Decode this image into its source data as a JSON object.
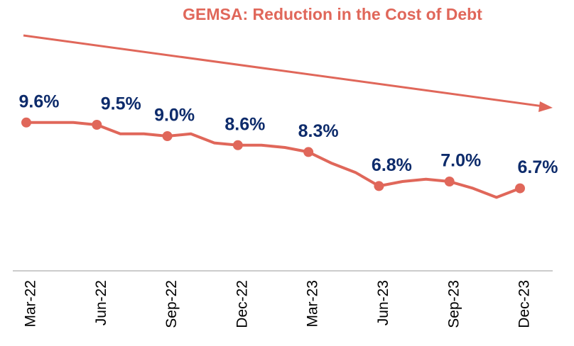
{
  "chart_data": {
    "type": "line",
    "title": "GEMSA: Reduction in the Cost of Debt",
    "categories": [
      "Mar-22",
      null,
      null,
      "Jun-22",
      null,
      null,
      "Sep-22",
      null,
      null,
      "Dec-22",
      null,
      null,
      "Mar-23",
      null,
      null,
      "Jun-23",
      null,
      null,
      "Sep-23",
      null,
      null,
      "Dec-23"
    ],
    "series": [
      {
        "color": "#e0675a",
        "values": [
          9.6,
          9.6,
          9.6,
          9.5,
          9.1,
          9.1,
          9.0,
          9.1,
          8.7,
          8.6,
          8.6,
          8.5,
          8.3,
          7.8,
          7.4,
          6.8,
          7.0,
          7.1,
          7.0,
          6.7,
          6.3,
          6.7
        ],
        "value_labels": [
          "9.6%",
          null,
          null,
          "9.5%",
          null,
          null,
          "9.0%",
          null,
          null,
          "8.6%",
          null,
          null,
          "8.3%",
          null,
          null,
          "6.8%",
          null,
          null,
          "7.0%",
          null,
          null,
          "6.7%"
        ]
      }
    ],
    "ylim": [
      3,
      11
    ]
  }
}
